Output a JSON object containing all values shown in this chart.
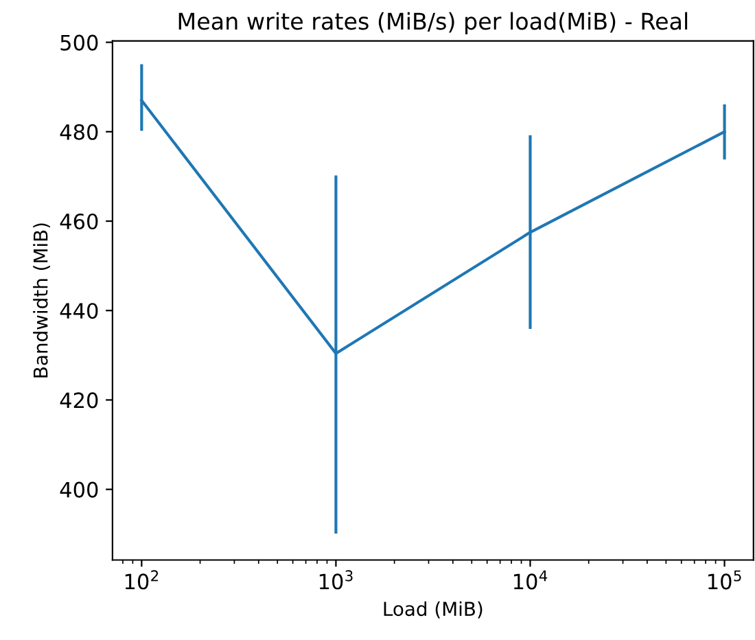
{
  "chart_data": {
    "type": "line",
    "title": "Mean write rates (MiB/s) per load(MiB) - Real",
    "xlabel": "Load (MiB)",
    "ylabel": "Bandwidth (MiB)",
    "log": "x",
    "x": [
      100,
      1000,
      10000,
      100000
    ],
    "series": [
      {
        "color": "#1f77b4",
        "values": [
          487.0,
          430.4,
          457.5,
          480.0
        ],
        "errors": [
          [
            480.2,
            495.1
          ],
          [
            390.1,
            470.2
          ],
          [
            435.9,
            479.2
          ],
          [
            473.8,
            486.1
          ]
        ]
      }
    ],
    "xlim": [
      70.8,
      141000
    ],
    "xticks": [
      {
        "value": 100,
        "label": "10$^{2}$"
      },
      {
        "value": 1000,
        "label": "10$^{3}$"
      },
      {
        "value": 10000,
        "label": "10$^{4}$"
      },
      {
        "value": 100000,
        "label": "10$^{5}$"
      }
    ],
    "ylim": [
      384.2,
      500.3
    ],
    "yticks": [
      400,
      420,
      440,
      460,
      480,
      500
    ],
    "grid": false,
    "marker": "none",
    "line_style": "solid"
  }
}
